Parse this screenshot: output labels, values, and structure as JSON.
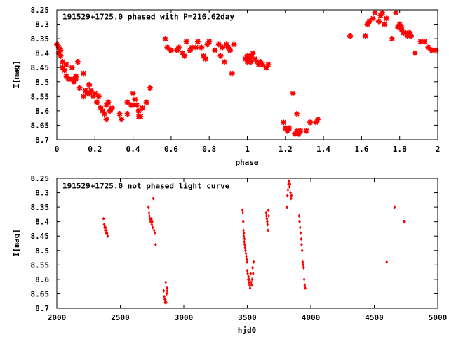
{
  "chart_data": [
    {
      "type": "scatter",
      "title": "191529+1725.0 phased with P=216.62day",
      "xlabel": "phase",
      "ylabel": "I[mag]",
      "xlim": [
        0,
        2
      ],
      "ylim": [
        8.25,
        8.7
      ],
      "y_inverted": true,
      "grid": false,
      "marker": "star",
      "x_ticks": [
        0,
        0.2,
        0.4,
        0.6,
        0.8,
        1,
        1.2,
        1.4,
        1.6,
        1.8,
        2
      ],
      "x_tick_labels": [
        "0",
        "0.2",
        "0.4",
        "0.6",
        "0.8",
        "1",
        "1.2",
        "1.4",
        "1.6",
        "1.8",
        "2"
      ],
      "y_ticks": [
        8.25,
        8.3,
        8.35,
        8.4,
        8.45,
        8.5,
        8.55,
        8.6,
        8.65,
        8.7
      ],
      "y_tick_labels": [
        "8.25",
        "8.3",
        "8.35",
        "8.4",
        "8.45",
        "8.5",
        "8.55",
        "8.6",
        "8.65",
        "8.7"
      ],
      "color": "#ff0000",
      "points": [
        [
          0.0,
          8.37
        ],
        [
          0.01,
          8.38
        ],
        [
          0.01,
          8.4
        ],
        [
          0.02,
          8.39
        ],
        [
          0.02,
          8.41
        ],
        [
          0.03,
          8.43
        ],
        [
          0.03,
          8.45
        ],
        [
          0.04,
          8.46
        ],
        [
          0.05,
          8.44
        ],
        [
          0.05,
          8.48
        ],
        [
          0.06,
          8.49
        ],
        [
          0.07,
          8.49
        ],
        [
          0.08,
          8.45
        ],
        [
          0.08,
          8.49
        ],
        [
          0.09,
          8.5
        ],
        [
          0.1,
          8.48
        ],
        [
          0.1,
          8.49
        ],
        [
          0.11,
          8.43
        ],
        [
          0.12,
          8.52
        ],
        [
          0.14,
          8.47
        ],
        [
          0.14,
          8.55
        ],
        [
          0.15,
          8.53
        ],
        [
          0.16,
          8.54
        ],
        [
          0.17,
          8.51
        ],
        [
          0.17,
          8.54
        ],
        [
          0.18,
          8.53
        ],
        [
          0.19,
          8.55
        ],
        [
          0.2,
          8.54
        ],
        [
          0.21,
          8.57
        ],
        [
          0.22,
          8.55
        ],
        [
          0.23,
          8.59
        ],
        [
          0.24,
          8.6
        ],
        [
          0.25,
          8.61
        ],
        [
          0.26,
          8.58
        ],
        [
          0.26,
          8.63
        ],
        [
          0.27,
          8.57
        ],
        [
          0.28,
          8.6
        ],
        [
          0.29,
          8.59
        ],
        [
          0.33,
          8.61
        ],
        [
          0.34,
          8.63
        ],
        [
          0.37,
          8.57
        ],
        [
          0.37,
          8.61
        ],
        [
          0.39,
          8.58
        ],
        [
          0.4,
          8.54
        ],
        [
          0.4,
          8.58
        ],
        [
          0.41,
          8.56
        ],
        [
          0.42,
          8.58
        ],
        [
          0.43,
          8.6
        ],
        [
          0.43,
          8.62
        ],
        [
          0.44,
          8.62
        ],
        [
          0.45,
          8.59
        ],
        [
          0.47,
          8.57
        ],
        [
          0.49,
          8.52
        ],
        [
          0.57,
          8.35
        ],
        [
          0.58,
          8.38
        ],
        [
          0.6,
          8.39
        ],
        [
          0.63,
          8.39
        ],
        [
          0.64,
          8.38
        ],
        [
          0.66,
          8.4
        ],
        [
          0.67,
          8.41
        ],
        [
          0.68,
          8.36
        ],
        [
          0.7,
          8.39
        ],
        [
          0.71,
          8.38
        ],
        [
          0.73,
          8.38
        ],
        [
          0.74,
          8.36
        ],
        [
          0.76,
          8.38
        ],
        [
          0.77,
          8.41
        ],
        [
          0.78,
          8.42
        ],
        [
          0.79,
          8.37
        ],
        [
          0.8,
          8.36
        ],
        [
          0.83,
          8.39
        ],
        [
          0.85,
          8.37
        ],
        [
          0.86,
          8.41
        ],
        [
          0.87,
          8.38
        ],
        [
          0.88,
          8.43
        ],
        [
          0.89,
          8.37
        ],
        [
          0.9,
          8.38
        ],
        [
          0.91,
          8.39
        ],
        [
          0.92,
          8.47
        ],
        [
          0.93,
          8.37
        ],
        [
          0.99,
          8.42
        ],
        [
          1.0,
          8.43
        ],
        [
          1.0,
          8.41
        ],
        [
          1.01,
          8.42
        ],
        [
          1.02,
          8.43
        ],
        [
          1.02,
          8.41
        ],
        [
          1.03,
          8.4
        ],
        [
          1.04,
          8.42
        ],
        [
          1.05,
          8.43
        ],
        [
          1.06,
          8.44
        ],
        [
          1.07,
          8.43
        ],
        [
          1.08,
          8.44
        ],
        [
          1.1,
          8.45
        ],
        [
          1.11,
          8.44
        ],
        [
          1.19,
          8.64
        ],
        [
          1.2,
          8.66
        ],
        [
          1.21,
          8.67
        ],
        [
          1.22,
          8.66
        ],
        [
          1.24,
          8.54
        ],
        [
          1.25,
          8.68
        ],
        [
          1.26,
          8.61
        ],
        [
          1.26,
          8.67
        ],
        [
          1.27,
          8.68
        ],
        [
          1.28,
          8.67
        ],
        [
          1.31,
          8.67
        ],
        [
          1.33,
          8.64
        ],
        [
          1.36,
          8.64
        ],
        [
          1.37,
          8.63
        ],
        [
          1.54,
          8.34
        ],
        [
          1.62,
          8.34
        ],
        [
          1.63,
          8.3
        ],
        [
          1.64,
          8.29
        ],
        [
          1.66,
          8.28
        ],
        [
          1.67,
          8.26
        ],
        [
          1.69,
          8.29
        ],
        [
          1.7,
          8.27
        ],
        [
          1.71,
          8.26
        ],
        [
          1.72,
          8.3
        ],
        [
          1.73,
          8.28
        ],
        [
          1.76,
          8.35
        ],
        [
          1.78,
          8.26
        ],
        [
          1.79,
          8.31
        ],
        [
          1.8,
          8.3
        ],
        [
          1.81,
          8.31
        ],
        [
          1.81,
          8.32
        ],
        [
          1.82,
          8.33
        ],
        [
          1.83,
          8.33
        ],
        [
          1.84,
          8.34
        ],
        [
          1.85,
          8.33
        ],
        [
          1.86,
          8.34
        ],
        [
          1.88,
          8.4
        ],
        [
          1.91,
          8.36
        ],
        [
          1.93,
          8.36
        ],
        [
          1.95,
          8.38
        ],
        [
          1.97,
          8.39
        ],
        [
          1.99,
          8.39
        ]
      ]
    },
    {
      "type": "scatter",
      "title": "191529+1725.0 not phased light curve",
      "xlabel": "hjd0",
      "ylabel": "I[mag]",
      "xlim": [
        2000,
        5000
      ],
      "ylim": [
        8.25,
        8.7
      ],
      "y_inverted": true,
      "grid": false,
      "marker": "diamond",
      "x_ticks": [
        2000,
        2500,
        3000,
        3500,
        4000,
        4500,
        5000
      ],
      "x_tick_labels": [
        "2000",
        "2500",
        "3000",
        "3500",
        "4000",
        "4500",
        "5000"
      ],
      "y_ticks": [
        8.25,
        8.3,
        8.35,
        8.4,
        8.45,
        8.5,
        8.55,
        8.6,
        8.65,
        8.7
      ],
      "y_tick_labels": [
        "8.25",
        "8.3",
        "8.35",
        "8.4",
        "8.45",
        "8.5",
        "8.55",
        "8.6",
        "8.65",
        "8.7"
      ],
      "color": "#ff0000",
      "points": [
        [
          2368,
          8.39
        ],
        [
          2372,
          8.41
        ],
        [
          2376,
          8.42
        ],
        [
          2380,
          8.43
        ],
        [
          2384,
          8.42
        ],
        [
          2388,
          8.44
        ],
        [
          2392,
          8.43
        ],
        [
          2396,
          8.44
        ],
        [
          2400,
          8.45
        ],
        [
          2722,
          8.35
        ],
        [
          2726,
          8.37
        ],
        [
          2729,
          8.38
        ],
        [
          2732,
          8.39
        ],
        [
          2735,
          8.39
        ],
        [
          2738,
          8.4
        ],
        [
          2742,
          8.4
        ],
        [
          2745,
          8.39
        ],
        [
          2748,
          8.41
        ],
        [
          2751,
          8.4
        ],
        [
          2755,
          8.42
        ],
        [
          2760,
          8.32
        ],
        [
          2766,
          8.43
        ],
        [
          2772,
          8.44
        ],
        [
          2778,
          8.48
        ],
        [
          2842,
          8.64
        ],
        [
          2846,
          8.66
        ],
        [
          2849,
          8.67
        ],
        [
          2852,
          8.68
        ],
        [
          2855,
          8.67
        ],
        [
          2858,
          8.61
        ],
        [
          2861,
          8.68
        ],
        [
          2864,
          8.65
        ],
        [
          2867,
          8.63
        ],
        [
          2870,
          8.64
        ],
        [
          3462,
          8.36
        ],
        [
          3465,
          8.37
        ],
        [
          3468,
          8.4
        ],
        [
          3470,
          8.43
        ],
        [
          3472,
          8.45
        ],
        [
          3474,
          8.44
        ],
        [
          3476,
          8.47
        ],
        [
          3478,
          8.46
        ],
        [
          3480,
          8.48
        ],
        [
          3483,
          8.49
        ],
        [
          3486,
          8.5
        ],
        [
          3489,
          8.51
        ],
        [
          3492,
          8.52
        ],
        [
          3495,
          8.53
        ],
        [
          3498,
          8.54
        ],
        [
          3500,
          8.57
        ],
        [
          3503,
          8.58
        ],
        [
          3506,
          8.6
        ],
        [
          3509,
          8.59
        ],
        [
          3512,
          8.61
        ],
        [
          3515,
          8.6
        ],
        [
          3518,
          8.62
        ],
        [
          3522,
          8.63
        ],
        [
          3526,
          8.58
        ],
        [
          3530,
          8.61
        ],
        [
          3534,
          8.62
        ],
        [
          3538,
          8.6
        ],
        [
          3542,
          8.56
        ],
        [
          3546,
          8.58
        ],
        [
          3550,
          8.54
        ],
        [
          3648,
          8.37
        ],
        [
          3651,
          8.38
        ],
        [
          3654,
          8.39
        ],
        [
          3657,
          8.4
        ],
        [
          3660,
          8.41
        ],
        [
          3663,
          8.43
        ],
        [
          3666,
          8.36
        ],
        [
          3669,
          8.38
        ],
        [
          3812,
          8.35
        ],
        [
          3816,
          8.31
        ],
        [
          3820,
          8.29
        ],
        [
          3824,
          8.27
        ],
        [
          3828,
          8.26
        ],
        [
          3832,
          8.28
        ],
        [
          3836,
          8.27
        ],
        [
          3840,
          8.3
        ],
        [
          3844,
          8.32
        ],
        [
          3848,
          8.31
        ],
        [
          3908,
          8.38
        ],
        [
          3912,
          8.4
        ],
        [
          3916,
          8.42
        ],
        [
          3920,
          8.44
        ],
        [
          3924,
          8.46
        ],
        [
          3928,
          8.48
        ],
        [
          3932,
          8.5
        ],
        [
          3936,
          8.54
        ],
        [
          3940,
          8.55
        ],
        [
          3944,
          8.56
        ],
        [
          3948,
          8.6
        ],
        [
          3952,
          8.62
        ],
        [
          3956,
          8.63
        ],
        [
          4598,
          8.54
        ],
        [
          4660,
          8.35
        ],
        [
          4735,
          8.4
        ]
      ]
    }
  ]
}
